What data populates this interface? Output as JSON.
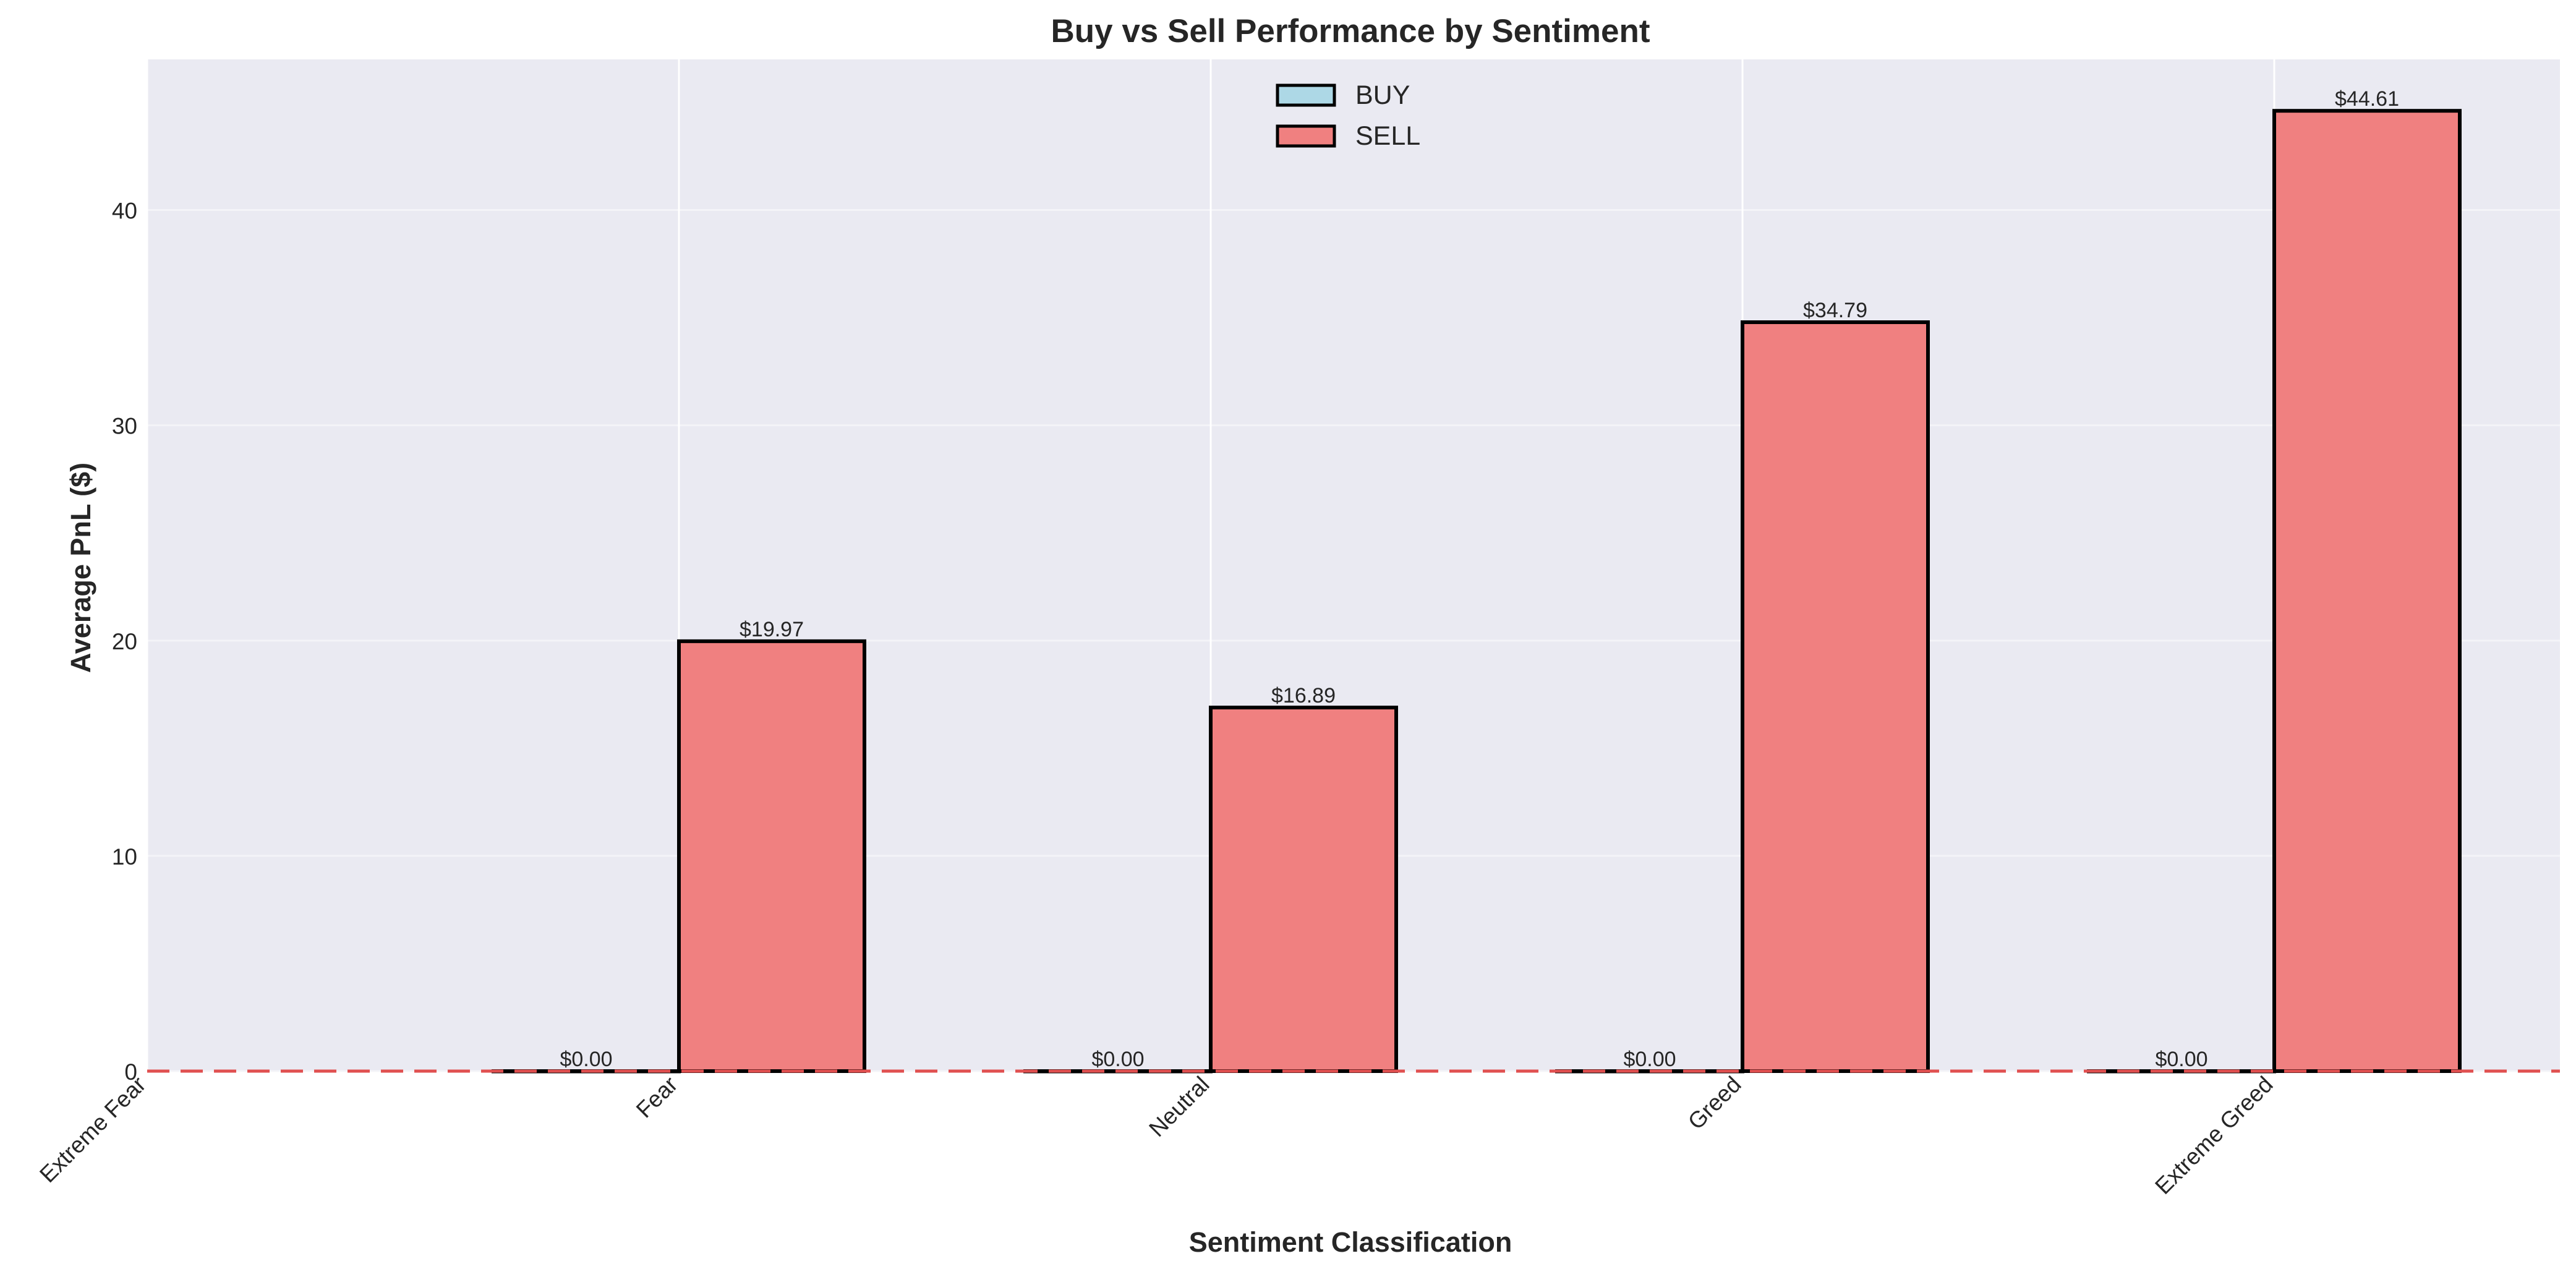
{
  "chart_data": {
    "type": "bar",
    "title": "Buy vs Sell Performance by Sentiment",
    "xlabel": "Sentiment Classification",
    "ylabel": "Average PnL ($)",
    "categories": [
      "Extreme Fear",
      "Fear",
      "Neutral",
      "Greed",
      "Extreme Greed"
    ],
    "series": [
      {
        "name": "BUY",
        "color": "#add8e6",
        "values": [
          null,
          0.0,
          0.0,
          0.0,
          0.0
        ],
        "labels": [
          "",
          "$0.00",
          "$0.00",
          "$0.00",
          "$0.00"
        ]
      },
      {
        "name": "SELL",
        "color": "#f08080",
        "values": [
          null,
          19.97,
          16.89,
          34.79,
          44.61
        ],
        "labels": [
          "",
          "$19.97",
          "$16.89",
          "$34.79",
          "$44.61"
        ]
      }
    ],
    "ylim": [
      0,
      47
    ],
    "yticks": [
      0,
      10,
      20,
      30,
      40
    ],
    "reference_line": {
      "y": 0,
      "color": "#e05050",
      "style": "dashed"
    },
    "grid": true,
    "legend": "upper-center",
    "background": "#eaeaf2"
  }
}
